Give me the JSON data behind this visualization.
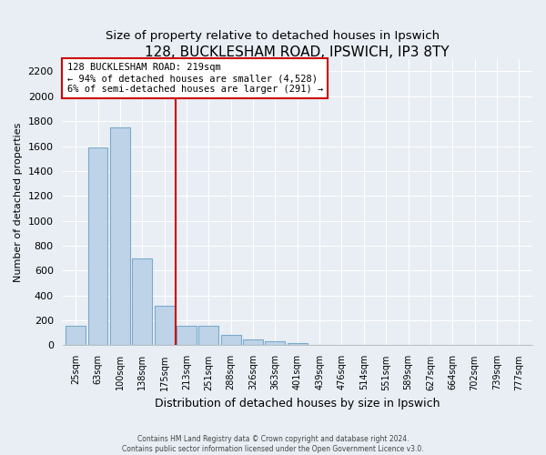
{
  "title": "128, BUCKLESHAM ROAD, IPSWICH, IP3 8TY",
  "subtitle": "Size of property relative to detached houses in Ipswich",
  "xlabel": "Distribution of detached houses by size in Ipswich",
  "ylabel": "Number of detached properties",
  "bar_labels": [
    "25sqm",
    "63sqm",
    "100sqm",
    "138sqm",
    "175sqm",
    "213sqm",
    "251sqm",
    "288sqm",
    "326sqm",
    "363sqm",
    "401sqm",
    "439sqm",
    "476sqm",
    "514sqm",
    "551sqm",
    "589sqm",
    "627sqm",
    "664sqm",
    "702sqm",
    "739sqm",
    "777sqm"
  ],
  "bar_values": [
    155,
    1590,
    1750,
    700,
    315,
    160,
    155,
    85,
    50,
    30,
    15,
    0,
    0,
    0,
    0,
    0,
    0,
    0,
    0,
    0,
    0
  ],
  "bar_color": "#bed3e8",
  "bar_edge_color": "#7aaacb",
  "property_line_color": "#cc0000",
  "annotation_line1": "128 BUCKLESHAM ROAD: 219sqm",
  "annotation_line2": "← 94% of detached houses are smaller (4,528)",
  "annotation_line3": "6% of semi-detached houses are larger (291) →",
  "annotation_box_color": "white",
  "annotation_box_edge": "#cc0000",
  "ylim": [
    0,
    2300
  ],
  "yticks": [
    0,
    200,
    400,
    600,
    800,
    1000,
    1200,
    1400,
    1600,
    1800,
    2000,
    2200
  ],
  "footer_line1": "Contains HM Land Registry data © Crown copyright and database right 2024.",
  "footer_line2": "Contains public sector information licensed under the Open Government Licence v3.0.",
  "bg_color": "#e8eef4",
  "grid_color": "white",
  "title_fontsize": 11,
  "subtitle_fontsize": 9.5,
  "ylabel_fontsize": 8,
  "xlabel_fontsize": 9,
  "tick_fontsize": 8,
  "xtick_fontsize": 7,
  "property_line_xindex": 4.5
}
